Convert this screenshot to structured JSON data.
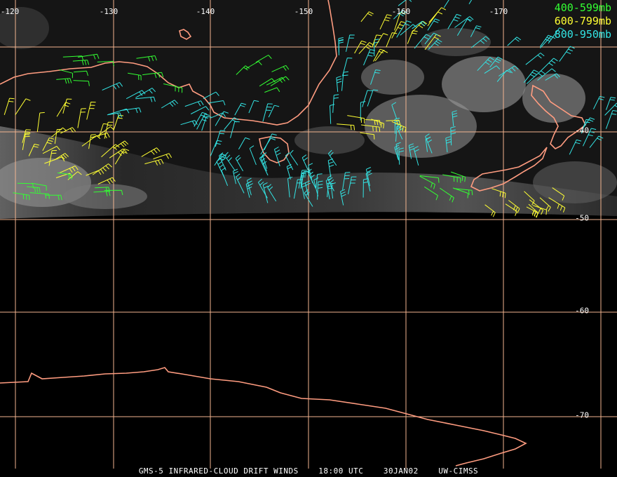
{
  "map": {
    "longitude_labels": [
      "-120",
      "-130",
      "-140",
      "-150",
      "-160",
      "-170"
    ],
    "latitude_labels": [
      "-40",
      "-50",
      "-60",
      "-70"
    ]
  },
  "legend": [
    {
      "label": "400-599mb",
      "color": "#33ff33"
    },
    {
      "label": "600-799mb",
      "color": "#ffff33"
    },
    {
      "label": "800-950mb",
      "color": "#33e5e5"
    }
  ],
  "footer": {
    "product": "GMS-5 INFRARED-CLOUD DRIFT WINDS",
    "time": "18:00 UTC",
    "date": "30JAN02",
    "source": "UW-CIMSS"
  },
  "colors": {
    "grid": "#f2b48f",
    "coastline": "#ff9c80",
    "background": "#000000"
  }
}
